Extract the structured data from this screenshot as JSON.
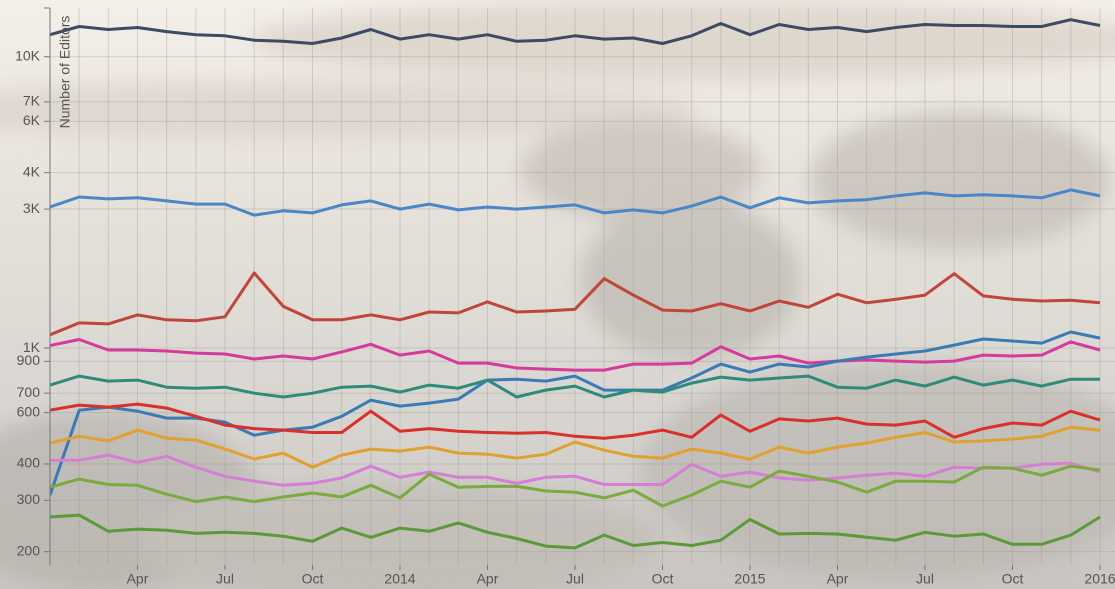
{
  "chart_data": {
    "type": "line",
    "log_scale": true,
    "grid": true,
    "y_label": "Number of Editors",
    "x": [
      "2013-01",
      "2013-02",
      "2013-03",
      "2013-04",
      "2013-05",
      "2013-06",
      "2013-07",
      "2013-08",
      "2013-09",
      "2013-10",
      "2013-11",
      "2013-12",
      "2014-01",
      "2014-02",
      "2014-03",
      "2014-04",
      "2014-05",
      "2014-06",
      "2014-07",
      "2014-08",
      "2014-09",
      "2014-10",
      "2014-11",
      "2014-12",
      "2015-01",
      "2015-02",
      "2015-03",
      "2015-04",
      "2015-05",
      "2015-06",
      "2015-07",
      "2015-08",
      "2015-09",
      "2015-10",
      "2015-11",
      "2015-12",
      "2016-01"
    ],
    "xlim": [
      "2013-01",
      "2016-01"
    ],
    "xticks": [
      {
        "value": "2013-04",
        "label": "Apr"
      },
      {
        "value": "2013-07",
        "label": "Jul"
      },
      {
        "value": "2013-10",
        "label": "Oct"
      },
      {
        "value": "2014-01",
        "label": "2014"
      },
      {
        "value": "2014-04",
        "label": "Apr"
      },
      {
        "value": "2014-07",
        "label": "Jul"
      },
      {
        "value": "2014-10",
        "label": "Oct"
      },
      {
        "value": "2015-01",
        "label": "2015"
      },
      {
        "value": "2015-04",
        "label": "Apr"
      },
      {
        "value": "2015-07",
        "label": "Jul"
      },
      {
        "value": "2015-10",
        "label": "Oct"
      },
      {
        "value": "2016-01",
        "label": "2016"
      }
    ],
    "ylim": [
      180,
      14700
    ],
    "yticks": [
      200,
      300,
      400,
      600,
      700,
      900,
      {
        "value": 1000,
        "label": "1K"
      },
      {
        "value": 3000,
        "label": "3K"
      },
      {
        "value": 4000,
        "label": "4K"
      },
      {
        "value": 6000,
        "label": "6K"
      },
      {
        "value": 7000,
        "label": "7K"
      },
      {
        "value": 10000,
        "label": "10K"
      }
    ],
    "series": [
      {
        "color": "#3d4a63",
        "values": [
          11900,
          12700,
          12400,
          12600,
          12200,
          11900,
          11800,
          11400,
          11300,
          11100,
          11600,
          12400,
          11500,
          11900,
          11500,
          11900,
          11300,
          11400,
          11800,
          11500,
          11600,
          11100,
          11800,
          13000,
          11900,
          12900,
          12400,
          12600,
          12200,
          12600,
          12900,
          12800,
          12800,
          12700,
          12700,
          13400,
          12800
        ]
      },
      {
        "color": "#4a86c8",
        "values": [
          3050,
          3300,
          3250,
          3280,
          3200,
          3120,
          3120,
          2860,
          2960,
          2910,
          3100,
          3200,
          3000,
          3120,
          2980,
          3050,
          3000,
          3050,
          3100,
          2910,
          2980,
          2910,
          3070,
          3300,
          3030,
          3280,
          3150,
          3200,
          3230,
          3330,
          3410,
          3330,
          3360,
          3330,
          3280,
          3490,
          3330
        ]
      },
      {
        "color": "#c0453a",
        "values": [
          1110,
          1220,
          1210,
          1300,
          1250,
          1240,
          1280,
          1810,
          1390,
          1250,
          1250,
          1300,
          1250,
          1330,
          1320,
          1440,
          1330,
          1340,
          1360,
          1730,
          1520,
          1350,
          1340,
          1420,
          1340,
          1450,
          1380,
          1530,
          1430,
          1470,
          1520,
          1800,
          1510,
          1470,
          1450,
          1460,
          1430
        ]
      },
      {
        "color": "#d63a9a",
        "values": [
          1020,
          1070,
          985,
          985,
          977,
          961,
          954,
          917,
          939,
          917,
          970,
          1030,
          946,
          977,
          888,
          888,
          854,
          847,
          840,
          840,
          881,
          881,
          888,
          1010,
          917,
          939,
          888,
          902,
          910,
          902,
          895,
          902,
          946,
          939,
          946,
          1050,
          985
        ]
      },
      {
        "color": "#3a7ab5",
        "values": [
          313,
          612,
          627,
          607,
          575,
          575,
          557,
          502,
          523,
          535,
          583,
          662,
          632,
          647,
          668,
          776,
          782,
          770,
          801,
          717,
          717,
          717,
          789,
          881,
          827,
          881,
          861,
          902,
          931,
          954,
          977,
          1024,
          1074,
          1057,
          1040,
          1135,
          1082
        ]
      },
      {
        "color": "#2e8b7a",
        "values": [
          746,
          801,
          770,
          776,
          734,
          728,
          734,
          700,
          679,
          700,
          734,
          740,
          706,
          746,
          728,
          776,
          679,
          717,
          740,
          679,
          717,
          706,
          758,
          795,
          776,
          789,
          801,
          734,
          728,
          776,
          740,
          795,
          746,
          776,
          740,
          782,
          782
        ]
      },
      {
        "color": "#d9302c",
        "values": [
          612,
          637,
          627,
          642,
          622,
          583,
          544,
          529,
          523,
          513,
          513,
          607,
          518,
          529,
          518,
          513,
          510,
          513,
          498,
          490,
          502,
          523,
          494,
          589,
          518,
          571,
          562,
          575,
          548,
          544,
          562,
          494,
          529,
          553,
          544,
          607,
          566
        ]
      },
      {
        "color": "#e0a12e",
        "values": [
          472,
          498,
          480,
          523,
          490,
          483,
          450,
          416,
          436,
          390,
          429,
          450,
          443,
          457,
          436,
          432,
          419,
          432,
          476,
          446,
          425,
          419,
          450,
          436,
          415,
          457,
          436,
          457,
          472,
          494,
          513,
          476,
          480,
          487,
          498,
          535,
          523
        ]
      },
      {
        "color": "#d67ed6",
        "values": [
          412,
          412,
          429,
          405,
          425,
          390,
          363,
          349,
          338,
          343,
          358,
          393,
          360,
          375,
          360,
          360,
          343,
          360,
          363,
          340,
          340,
          340,
          399,
          363,
          375,
          358,
          352,
          358,
          366,
          372,
          363,
          390,
          387,
          387,
          399,
          402,
          375
        ]
      },
      {
        "color": "#7aab3e",
        "values": [
          333,
          355,
          340,
          338,
          315,
          297,
          308,
          297,
          308,
          318,
          308,
          338,
          306,
          369,
          333,
          335,
          335,
          323,
          320,
          306,
          325,
          287,
          313,
          349,
          333,
          378,
          363,
          347,
          320,
          349,
          349,
          347,
          390,
          387,
          366,
          393,
          381
        ]
      },
      {
        "color": "#5a9a3a",
        "values": [
          263,
          267,
          235,
          239,
          237,
          231,
          233,
          231,
          226,
          217,
          241,
          224,
          241,
          235,
          251,
          233,
          222,
          209,
          206,
          228,
          210,
          215,
          210,
          219,
          258,
          230,
          231,
          230,
          224,
          219,
          233,
          226,
          230,
          212,
          212,
          228,
          263
        ]
      }
    ]
  }
}
